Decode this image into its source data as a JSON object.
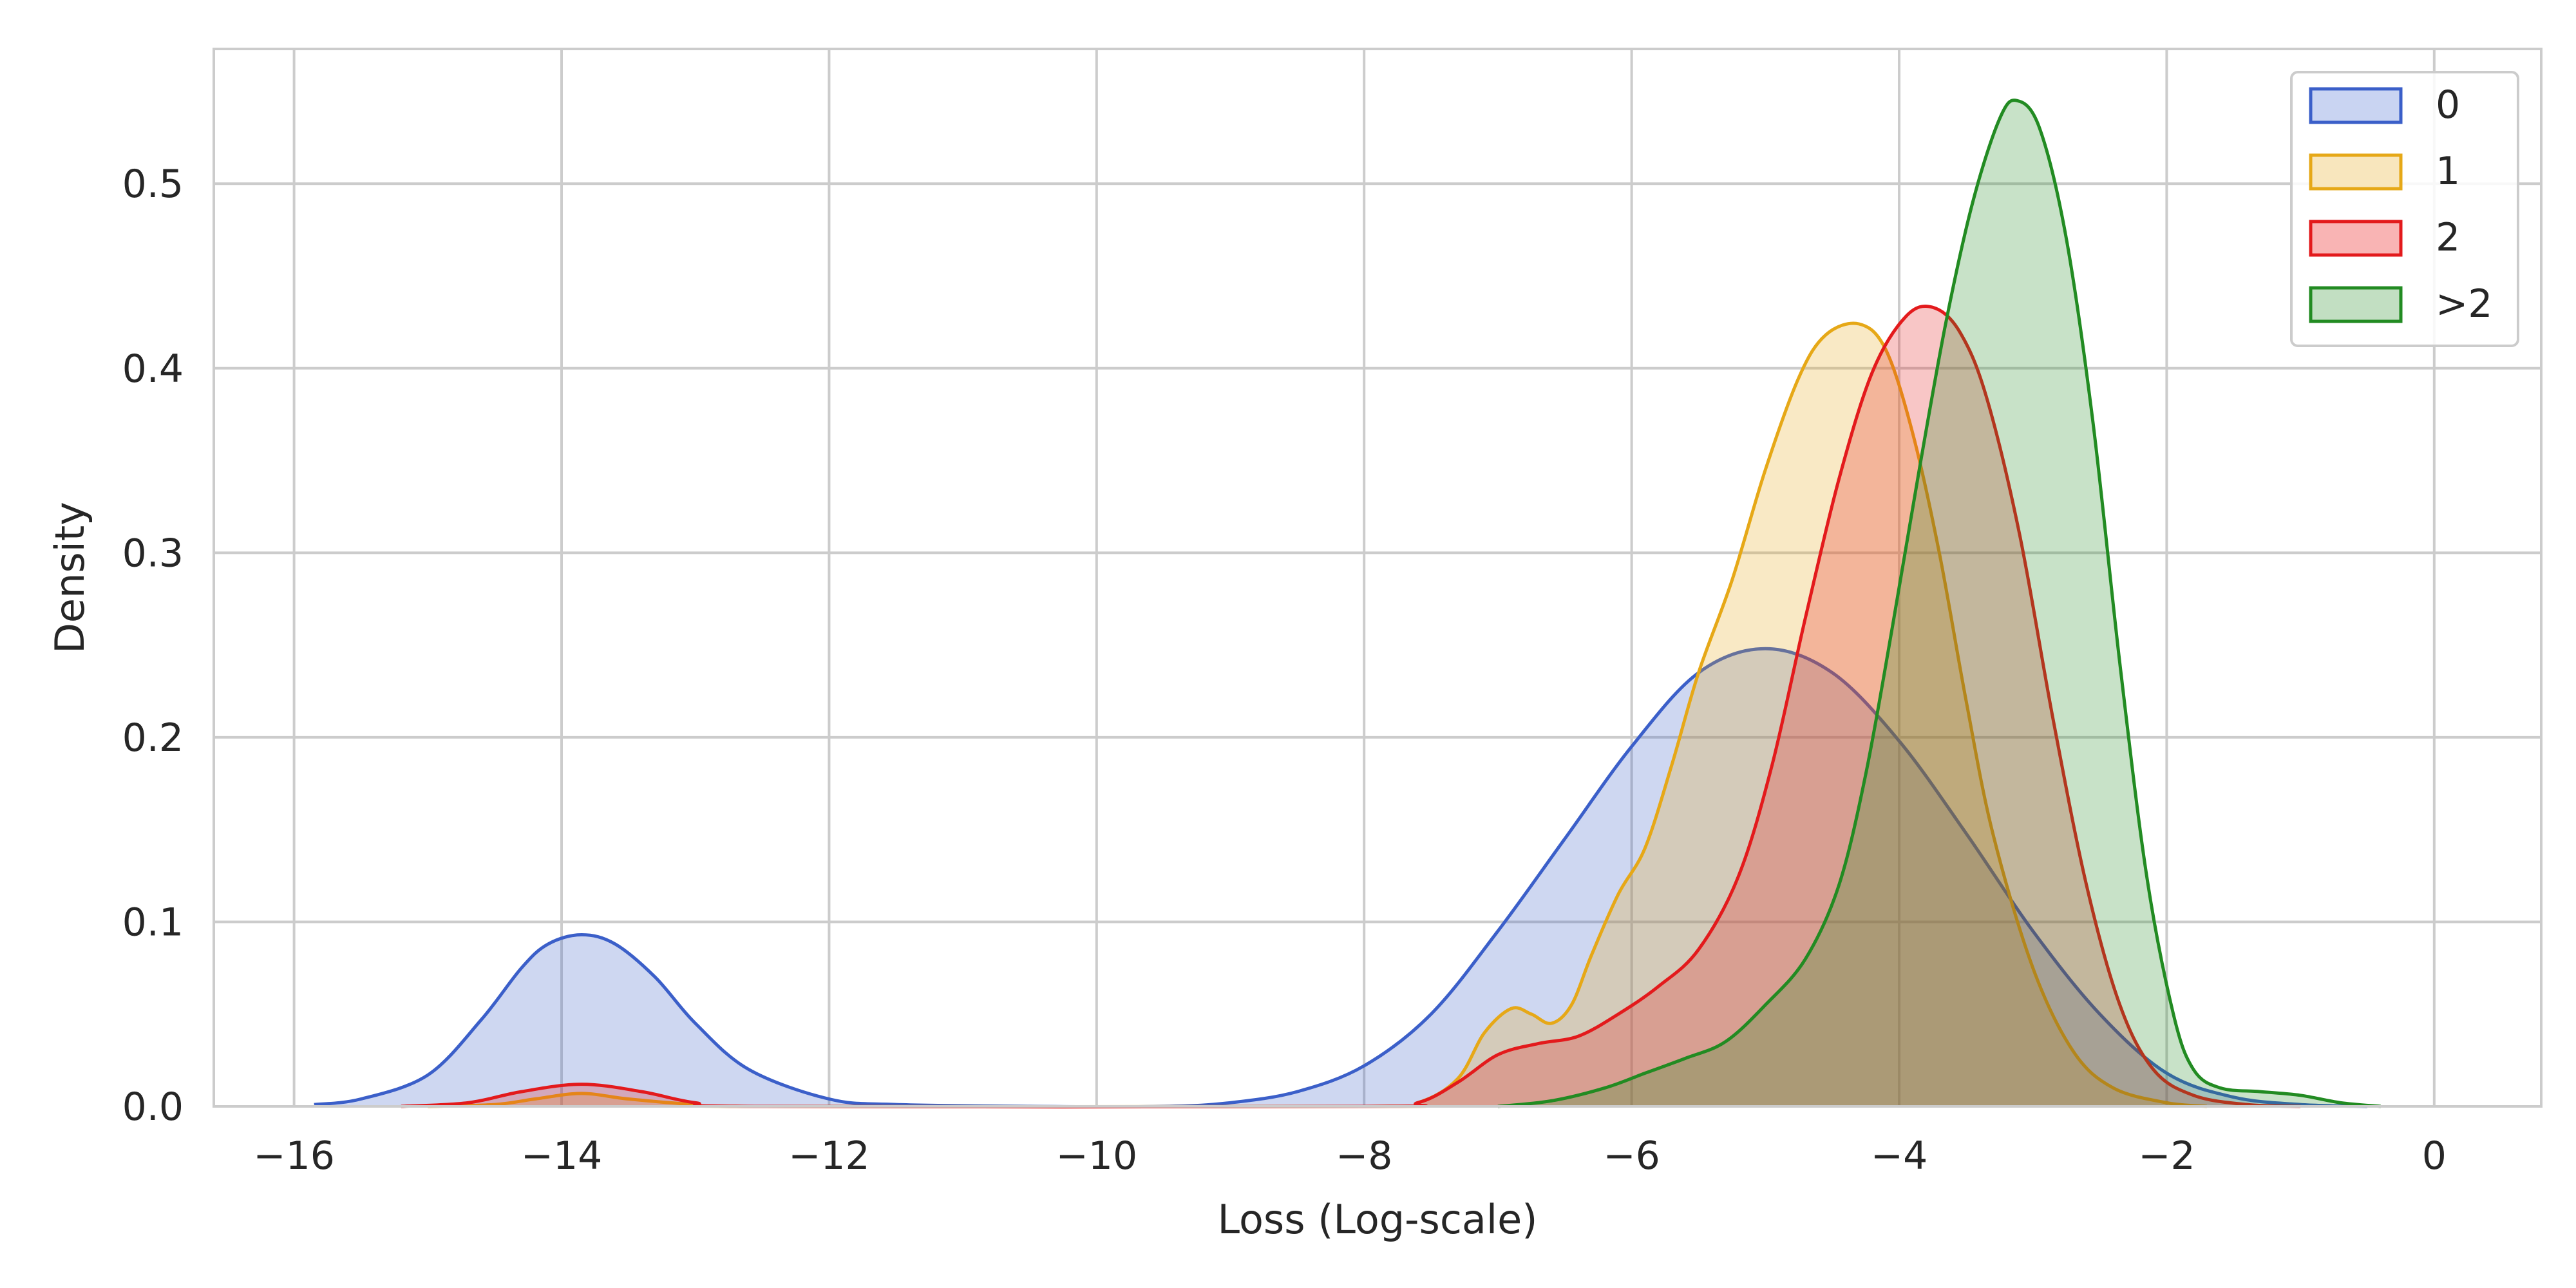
{
  "chart_data": {
    "type": "area",
    "xlabel": "Loss (Log-scale)",
    "ylabel": "Density",
    "xlim": [
      -16.6,
      0.8
    ],
    "ylim": [
      0,
      0.573
    ],
    "xticks": [
      -16,
      -14,
      -12,
      -10,
      -8,
      -6,
      -4,
      -2,
      0
    ],
    "xtick_labels": [
      "−16",
      "−14",
      "−12",
      "−10",
      "−8",
      "−6",
      "−4",
      "−2",
      "0"
    ],
    "yticks": [
      0.0,
      0.1,
      0.2,
      0.3,
      0.4,
      0.5
    ],
    "ytick_labels": [
      "0.0",
      "0.1",
      "0.2",
      "0.3",
      "0.4",
      "0.5"
    ],
    "grid": true,
    "legend_position": "top-right",
    "series": [
      {
        "name": "0",
        "color": "#3b5fc9",
        "fill": "#c9d4f2",
        "points": [
          [
            -15.85,
            0.001
          ],
          [
            -15.5,
            0.004
          ],
          [
            -15.0,
            0.017
          ],
          [
            -14.6,
            0.047
          ],
          [
            -14.3,
            0.075
          ],
          [
            -14.1,
            0.088
          ],
          [
            -13.85,
            0.093
          ],
          [
            -13.6,
            0.088
          ],
          [
            -13.3,
            0.07
          ],
          [
            -13.0,
            0.045
          ],
          [
            -12.6,
            0.02
          ],
          [
            -12.0,
            0.004
          ],
          [
            -11.5,
            0.001
          ],
          [
            -10.5,
            0.0
          ],
          [
            -9.5,
            0.0
          ],
          [
            -9.0,
            0.002
          ],
          [
            -8.5,
            0.008
          ],
          [
            -8.0,
            0.022
          ],
          [
            -7.5,
            0.05
          ],
          [
            -7.0,
            0.095
          ],
          [
            -6.5,
            0.145
          ],
          [
            -6.0,
            0.195
          ],
          [
            -5.5,
            0.235
          ],
          [
            -5.0,
            0.248
          ],
          [
            -4.5,
            0.235
          ],
          [
            -4.0,
            0.198
          ],
          [
            -3.5,
            0.148
          ],
          [
            -3.0,
            0.095
          ],
          [
            -2.5,
            0.05
          ],
          [
            -2.0,
            0.018
          ],
          [
            -1.5,
            0.005
          ],
          [
            -1.0,
            0.001
          ],
          [
            -0.5,
            0.0
          ]
        ]
      },
      {
        "name": "1",
        "color": "#e6a817",
        "fill": "#f8e6bd",
        "points": [
          [
            -15.0,
            0.0
          ],
          [
            -14.5,
            0.001
          ],
          [
            -14.2,
            0.004
          ],
          [
            -13.85,
            0.007
          ],
          [
            -13.5,
            0.004
          ],
          [
            -13.0,
            0.001
          ],
          [
            -12.5,
            0.0
          ],
          [
            -8.0,
            0.0
          ],
          [
            -7.6,
            0.002
          ],
          [
            -7.3,
            0.015
          ],
          [
            -7.1,
            0.04
          ],
          [
            -6.9,
            0.053
          ],
          [
            -6.75,
            0.05
          ],
          [
            -6.6,
            0.045
          ],
          [
            -6.45,
            0.055
          ],
          [
            -6.3,
            0.082
          ],
          [
            -6.1,
            0.115
          ],
          [
            -5.9,
            0.14
          ],
          [
            -5.7,
            0.185
          ],
          [
            -5.5,
            0.235
          ],
          [
            -5.25,
            0.285
          ],
          [
            -5.0,
            0.345
          ],
          [
            -4.75,
            0.395
          ],
          [
            -4.55,
            0.418
          ],
          [
            -4.3,
            0.424
          ],
          [
            -4.1,
            0.41
          ],
          [
            -3.9,
            0.365
          ],
          [
            -3.7,
            0.3
          ],
          [
            -3.5,
            0.22
          ],
          [
            -3.3,
            0.148
          ],
          [
            -3.0,
            0.075
          ],
          [
            -2.7,
            0.03
          ],
          [
            -2.4,
            0.01
          ],
          [
            -2.0,
            0.002
          ],
          [
            -1.7,
            0.0
          ]
        ]
      },
      {
        "name": "2",
        "color": "#e31a1c",
        "fill": "#f9b4b4",
        "points": [
          [
            -15.2,
            0.0
          ],
          [
            -14.7,
            0.002
          ],
          [
            -14.3,
            0.008
          ],
          [
            -13.85,
            0.012
          ],
          [
            -13.4,
            0.008
          ],
          [
            -13.0,
            0.002
          ],
          [
            -12.5,
            0.0
          ],
          [
            -8.0,
            0.0
          ],
          [
            -7.6,
            0.002
          ],
          [
            -7.3,
            0.013
          ],
          [
            -7.0,
            0.028
          ],
          [
            -6.7,
            0.034
          ],
          [
            -6.4,
            0.038
          ],
          [
            -6.1,
            0.05
          ],
          [
            -5.8,
            0.065
          ],
          [
            -5.5,
            0.085
          ],
          [
            -5.2,
            0.125
          ],
          [
            -4.95,
            0.185
          ],
          [
            -4.7,
            0.265
          ],
          [
            -4.45,
            0.34
          ],
          [
            -4.2,
            0.398
          ],
          [
            -3.95,
            0.428
          ],
          [
            -3.75,
            0.433
          ],
          [
            -3.55,
            0.42
          ],
          [
            -3.35,
            0.385
          ],
          [
            -3.1,
            0.31
          ],
          [
            -2.85,
            0.21
          ],
          [
            -2.6,
            0.12
          ],
          [
            -2.35,
            0.055
          ],
          [
            -2.1,
            0.02
          ],
          [
            -1.8,
            0.006
          ],
          [
            -1.4,
            0.001
          ],
          [
            -1.0,
            0.0
          ]
        ]
      },
      {
        "name": ">2",
        "color": "#228b22",
        "fill": "#c2dfc2",
        "points": [
          [
            -7.0,
            0.0
          ],
          [
            -6.6,
            0.003
          ],
          [
            -6.2,
            0.01
          ],
          [
            -5.9,
            0.018
          ],
          [
            -5.6,
            0.026
          ],
          [
            -5.3,
            0.035
          ],
          [
            -5.0,
            0.055
          ],
          [
            -4.7,
            0.08
          ],
          [
            -4.45,
            0.12
          ],
          [
            -4.25,
            0.18
          ],
          [
            -4.05,
            0.26
          ],
          [
            -3.85,
            0.345
          ],
          [
            -3.65,
            0.425
          ],
          [
            -3.45,
            0.49
          ],
          [
            -3.25,
            0.535
          ],
          [
            -3.12,
            0.545
          ],
          [
            -2.95,
            0.53
          ],
          [
            -2.75,
            0.47
          ],
          [
            -2.55,
            0.37
          ],
          [
            -2.35,
            0.24
          ],
          [
            -2.15,
            0.125
          ],
          [
            -1.95,
            0.05
          ],
          [
            -1.8,
            0.02
          ],
          [
            -1.6,
            0.01
          ],
          [
            -1.3,
            0.008
          ],
          [
            -1.0,
            0.006
          ],
          [
            -0.7,
            0.002
          ],
          [
            -0.4,
            0.0
          ]
        ]
      }
    ]
  }
}
